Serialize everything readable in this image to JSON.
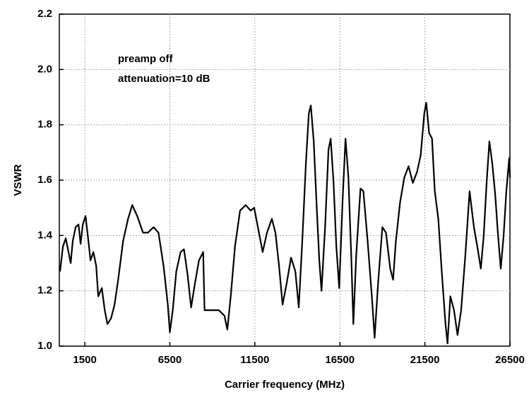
{
  "chart_data": {
    "type": "line",
    "xlabel": "Carrier frequency (MHz)",
    "ylabel": "VSWR",
    "annotations": [
      "preamp off",
      "attenuation=10 dB"
    ],
    "xlim": [
      0,
      26500
    ],
    "xticks": [
      1500,
      6500,
      11500,
      16500,
      21500,
      26500
    ],
    "ylim": [
      1.0,
      2.2
    ],
    "yticks": [
      {
        "value": 1.0,
        "label": "1.0"
      },
      1.2,
      1.4,
      1.6,
      1.8,
      {
        "value": 2.0,
        "label": "2.0"
      },
      2.2
    ],
    "grid": true,
    "series": [
      {
        "color": "#000000",
        "x": [
          40,
          210,
          380,
          540,
          670,
          790,
          960,
          1130,
          1250,
          1380,
          1540,
          1710,
          1830,
          2000,
          2170,
          2290,
          2500,
          2670,
          2830,
          3040,
          3250,
          3460,
          3750,
          4040,
          4290,
          4580,
          4920,
          5210,
          5540,
          5830,
          6130,
          6380,
          6500,
          6670,
          6880,
          7130,
          7330,
          7540,
          7750,
          7960,
          8210,
          8460,
          8540,
          8880,
          9380,
          9710,
          9880,
          10080,
          10330,
          10630,
          10960,
          11250,
          11460,
          11710,
          11960,
          12210,
          12500,
          12710,
          12920,
          13130,
          13380,
          13630,
          13880,
          14080,
          14290,
          14500,
          14670,
          14790,
          14960,
          15130,
          15290,
          15420,
          15630,
          15830,
          15960,
          16130,
          16290,
          16460,
          16670,
          16830,
          17000,
          17170,
          17290,
          17460,
          17710,
          17880,
          18130,
          18380,
          18540,
          18750,
          19000,
          19210,
          19460,
          19630,
          19790,
          20040,
          20290,
          20540,
          20790,
          21040,
          21250,
          21460,
          21580,
          21750,
          21920,
          22080,
          22290,
          22500,
          22710,
          22830,
          23000,
          23210,
          23420,
          23630,
          23880,
          24130,
          24380,
          24580,
          24790,
          24960,
          25130,
          25290,
          25460,
          25630,
          25790,
          25960,
          26130,
          26290,
          26460,
          26500
        ],
        "values": [
          1.27,
          1.36,
          1.39,
          1.34,
          1.3,
          1.38,
          1.43,
          1.44,
          1.37,
          1.44,
          1.47,
          1.38,
          1.31,
          1.34,
          1.29,
          1.18,
          1.21,
          1.13,
          1.08,
          1.1,
          1.15,
          1.24,
          1.38,
          1.46,
          1.51,
          1.47,
          1.41,
          1.41,
          1.43,
          1.41,
          1.29,
          1.15,
          1.05,
          1.13,
          1.27,
          1.34,
          1.35,
          1.26,
          1.14,
          1.22,
          1.31,
          1.34,
          1.13,
          1.13,
          1.13,
          1.11,
          1.06,
          1.18,
          1.36,
          1.49,
          1.51,
          1.49,
          1.5,
          1.42,
          1.34,
          1.41,
          1.46,
          1.41,
          1.29,
          1.15,
          1.23,
          1.32,
          1.27,
          1.14,
          1.38,
          1.66,
          1.84,
          1.87,
          1.74,
          1.51,
          1.31,
          1.2,
          1.43,
          1.71,
          1.75,
          1.59,
          1.36,
          1.21,
          1.54,
          1.75,
          1.61,
          1.32,
          1.08,
          1.33,
          1.57,
          1.56,
          1.38,
          1.18,
          1.03,
          1.23,
          1.43,
          1.41,
          1.28,
          1.24,
          1.38,
          1.52,
          1.61,
          1.65,
          1.59,
          1.63,
          1.69,
          1.84,
          1.88,
          1.77,
          1.75,
          1.56,
          1.46,
          1.26,
          1.08,
          1.01,
          1.18,
          1.13,
          1.04,
          1.13,
          1.33,
          1.56,
          1.43,
          1.36,
          1.28,
          1.4,
          1.59,
          1.74,
          1.66,
          1.55,
          1.41,
          1.28,
          1.4,
          1.56,
          1.68,
          1.61
        ]
      }
    ]
  }
}
